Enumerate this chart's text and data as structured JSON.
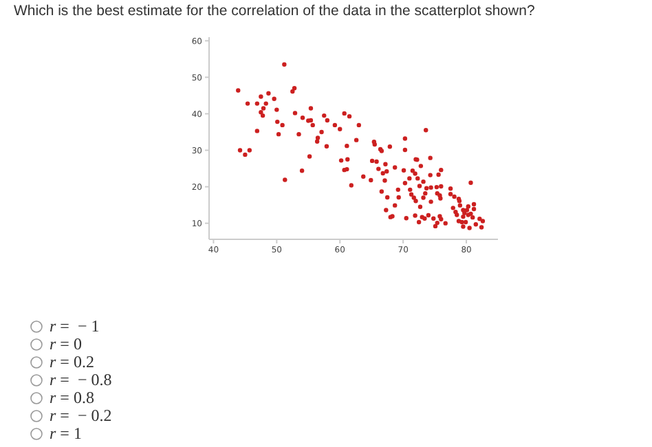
{
  "chart_data": {
    "type": "scatter",
    "title": "Which is the best estimate for the correlation of the data in the scatterplot shown?",
    "annotations": [
      "r =  − 1",
      "r = 0",
      "r = 0.2",
      "r =  − 0.8",
      "r = 0.8",
      "r =  − 0.2",
      "r = 1"
    ],
    "xlim": [
      39.3,
      85
    ],
    "ylim": [
      5.6,
      61
    ],
    "xticks": [
      40,
      50,
      60,
      70,
      80
    ],
    "yticks": [
      10,
      20,
      30,
      40,
      50,
      60
    ],
    "grid": false,
    "marker": "circle",
    "series": [
      {
        "color": "#cc2020",
        "x": [
          43.9,
          44.2,
          45.0,
          45.7,
          45.4,
          46.9,
          46.9,
          47.5,
          47.5,
          47.9,
          47.8,
          48.3,
          48.7,
          49.6,
          50.0,
          50.1,
          50.3,
          50.9,
          51.2,
          51.3,
          52.5,
          52.8,
          52.9,
          53.5,
          54.0,
          54.1,
          55.4,
          55.0,
          55.4,
          55.2,
          55.7,
          57.1,
          56.5,
          56.4,
          57.5,
          58.0,
          57.9,
          59.2,
          60.0,
          60.2,
          60.7,
          60.7,
          61.5,
          63.0,
          62.6,
          61.1,
          61.2,
          61.1,
          61.8,
          63.7,
          64.9,
          65.4,
          65.5,
          66.4,
          66.6,
          65.1,
          65.8,
          66.1,
          66.8,
          67.1,
          67.2,
          67.4,
          67.9,
          66.6,
          67.5,
          67.3,
          68.3,
          68.0,
          68.7,
          68.7,
          69.2,
          69.3,
          70.1,
          70.3,
          70.3,
          70.5,
          70.3,
          71.0,
          71.5,
          71.1,
          71.3,
          71.7,
          72.0,
          72.0,
          72.2,
          71.9,
          72.3,
          72.8,
          72.6,
          73.2,
          73.6,
          73.7,
          73.5,
          73.2,
          72.7,
          71.9,
          72.5,
          73.0,
          73.4,
          74.0,
          74.3,
          74.3,
          74.4,
          74.4,
          74.8,
          75.1,
          75.3,
          75.4,
          75.8,
          76.0,
          75.6,
          76.0,
          75.9,
          76.0,
          75.8,
          75.4,
          76.7,
          77.5,
          77.5,
          78.1,
          78.8,
          78.9,
          77.9,
          78.3,
          78.5,
          78.8,
          79.5,
          79.7,
          80.3,
          80.7,
          80.3,
          80.7,
          81.2,
          81.2,
          81.0,
          79.9,
          79.5,
          80.5,
          81.5,
          82.1,
          82.6,
          82.4,
          79.3,
          79.0,
          80.1,
          79.5
        ],
        "values": [
          46.4,
          30.0,
          28.8,
          30.0,
          42.8,
          35.3,
          42.8,
          44.7,
          40.4,
          41.5,
          39.5,
          42.8,
          45.6,
          44.1,
          41.1,
          37.8,
          34.4,
          36.9,
          53.5,
          21.9,
          46.1,
          47.0,
          40.2,
          34.4,
          24.4,
          38.9,
          41.5,
          38.1,
          38.2,
          28.3,
          36.9,
          35.0,
          33.4,
          32.4,
          39.5,
          38.2,
          31.1,
          36.9,
          35.8,
          27.2,
          24.6,
          40.1,
          39.3,
          36.9,
          32.8,
          31.2,
          27.5,
          24.8,
          20.4,
          22.8,
          21.8,
          32.3,
          31.6,
          30.3,
          29.8,
          27.1,
          26.9,
          24.9,
          23.7,
          21.7,
          26.2,
          24.2,
          31.0,
          18.7,
          17.1,
          13.6,
          11.9,
          11.7,
          14.9,
          25.3,
          19.2,
          17.1,
          24.5,
          33.2,
          30.1,
          11.4,
          21.0,
          22.3,
          24.4,
          19.2,
          17.9,
          17.0,
          16.1,
          27.5,
          27.4,
          23.6,
          22.3,
          25.7,
          20.2,
          21.4,
          35.5,
          19.6,
          18.2,
          17.0,
          14.5,
          12.1,
          10.3,
          11.7,
          11.3,
          12.2,
          27.9,
          23.2,
          19.8,
          15.9,
          11.3,
          9.2,
          19.9,
          18.2,
          17.6,
          20.1,
          23.3,
          24.6,
          16.8,
          11.1,
          11.9,
          10.1,
          10.0,
          19.5,
          18.0,
          17.3,
          16.7,
          16.1,
          14.2,
          13.1,
          12.3,
          10.6,
          11.8,
          12.8,
          14.6,
          21.1,
          12.3,
          12.6,
          15.2,
          13.9,
          11.6,
          10.3,
          9.1,
          8.7,
          9.7,
          11.2,
          10.6,
          8.9,
          10.3,
          14.9,
          13.6,
          13.6
        ]
      }
    ]
  }
}
